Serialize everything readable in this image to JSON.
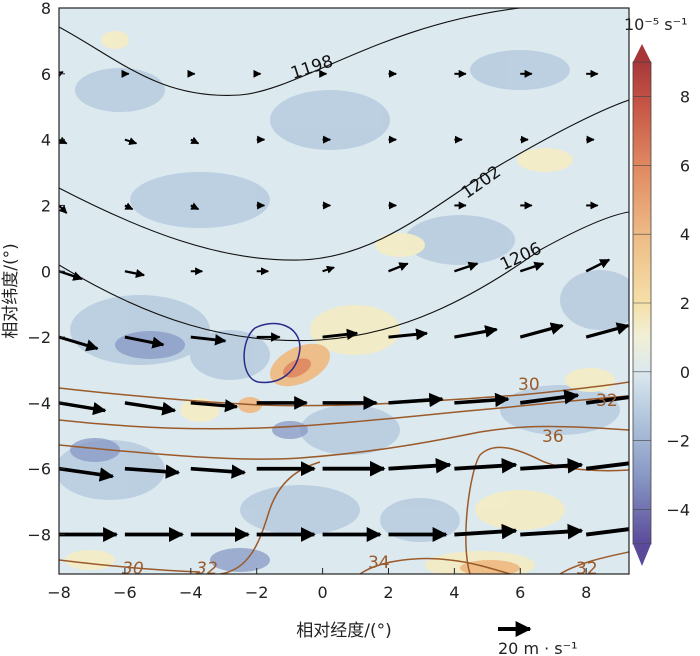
{
  "chart_data": {
    "type": "contour",
    "xlabel": "相对经度/(°)",
    "ylabel": "相对纬度/(°)",
    "xlim": [
      -8,
      9.3
    ],
    "ylim": [
      -9.2,
      8
    ],
    "x_ticks": [
      "-8",
      "-6",
      "-4",
      "-2",
      "0",
      "2",
      "4",
      "6",
      "8"
    ],
    "y_ticks": [
      "8",
      "6",
      "4",
      "2",
      "0",
      "-2",
      "-4",
      "-6",
      "-8"
    ],
    "colorbar": {
      "unit": "10⁻⁵ s⁻¹",
      "range": [
        -5,
        9
      ],
      "ticks": [
        "8",
        "6",
        "4",
        "2",
        "0",
        "-2",
        "-4"
      ]
    },
    "height_contours": {
      "color": "#111111",
      "labels": [
        "1198",
        "1202",
        "1206"
      ]
    },
    "temperature_contours": {
      "color": "#9b5a2a",
      "labels": [
        "30",
        "32",
        "36",
        "30",
        "32",
        "34",
        "32"
      ]
    },
    "circle_contour_color": "#2a2a8a",
    "wind_reference": {
      "label": "20 m · s⁻¹",
      "speed": 20
    },
    "wind_vectors": [
      {
        "y": 6,
        "x": [
          -8,
          -6,
          -4,
          -2,
          0,
          2,
          4,
          6,
          8
        ],
        "u": [
          1,
          1,
          1,
          1,
          1,
          2,
          3,
          3,
          3
        ],
        "v": [
          0.5,
          0,
          0,
          0,
          0,
          0,
          0,
          0,
          0
        ]
      },
      {
        "y": 4,
        "x": [
          -8,
          -6,
          -4,
          -2,
          0,
          2,
          4,
          6,
          8
        ],
        "u": [
          2,
          3,
          2,
          2,
          2,
          2,
          2,
          2,
          2
        ],
        "v": [
          -1,
          -1,
          -1,
          0,
          0,
          0,
          0,
          0,
          0
        ]
      },
      {
        "y": 2,
        "x": [
          -8,
          -6,
          -4,
          -2,
          0,
          2,
          4,
          6,
          8
        ],
        "u": [
          2,
          2,
          2,
          2,
          2,
          2,
          3,
          3,
          3
        ],
        "v": [
          -2,
          -1,
          -1,
          0,
          0,
          0,
          0,
          0,
          0
        ]
      },
      {
        "y": 0,
        "x": [
          -8,
          -6,
          -4,
          -2,
          0,
          2,
          4,
          6,
          8
        ],
        "u": [
          6,
          5,
          3,
          3,
          3,
          5,
          6,
          6,
          6
        ],
        "v": [
          -2,
          -1,
          0,
          0,
          1,
          2,
          2,
          2,
          3
        ]
      },
      {
        "y": -2,
        "x": [
          -8,
          -6,
          -4,
          -2,
          0,
          2,
          4,
          6,
          8
        ],
        "u": [
          10,
          10,
          9,
          6,
          9,
          10,
          11,
          11,
          11
        ],
        "v": [
          -3,
          -2,
          -1,
          0,
          1,
          1,
          2,
          3,
          3
        ]
      },
      {
        "y": -4,
        "x": [
          -8,
          -6,
          -4,
          -2,
          0,
          2,
          4,
          6,
          8
        ],
        "u": [
          12,
          13,
          12,
          13,
          14,
          14,
          14,
          15,
          15
        ],
        "v": [
          -2,
          -2,
          -1,
          0,
          0,
          1,
          1,
          2,
          2
        ]
      },
      {
        "y": -6,
        "x": [
          -8,
          -6,
          -4,
          -2,
          0,
          2,
          4,
          6,
          8
        ],
        "u": [
          14,
          14,
          14,
          15,
          16,
          16,
          16,
          16,
          16
        ],
        "v": [
          -2,
          -1,
          -1,
          0,
          0,
          1,
          1,
          1,
          2
        ]
      },
      {
        "y": -8,
        "x": [
          -8,
          -6,
          -4,
          -2,
          0,
          2,
          4,
          6,
          8
        ],
        "u": [
          15,
          15,
          15,
          15,
          15,
          15,
          16,
          16,
          16
        ],
        "v": [
          0,
          0,
          0,
          0,
          0,
          0,
          1,
          1,
          2
        ]
      }
    ]
  }
}
